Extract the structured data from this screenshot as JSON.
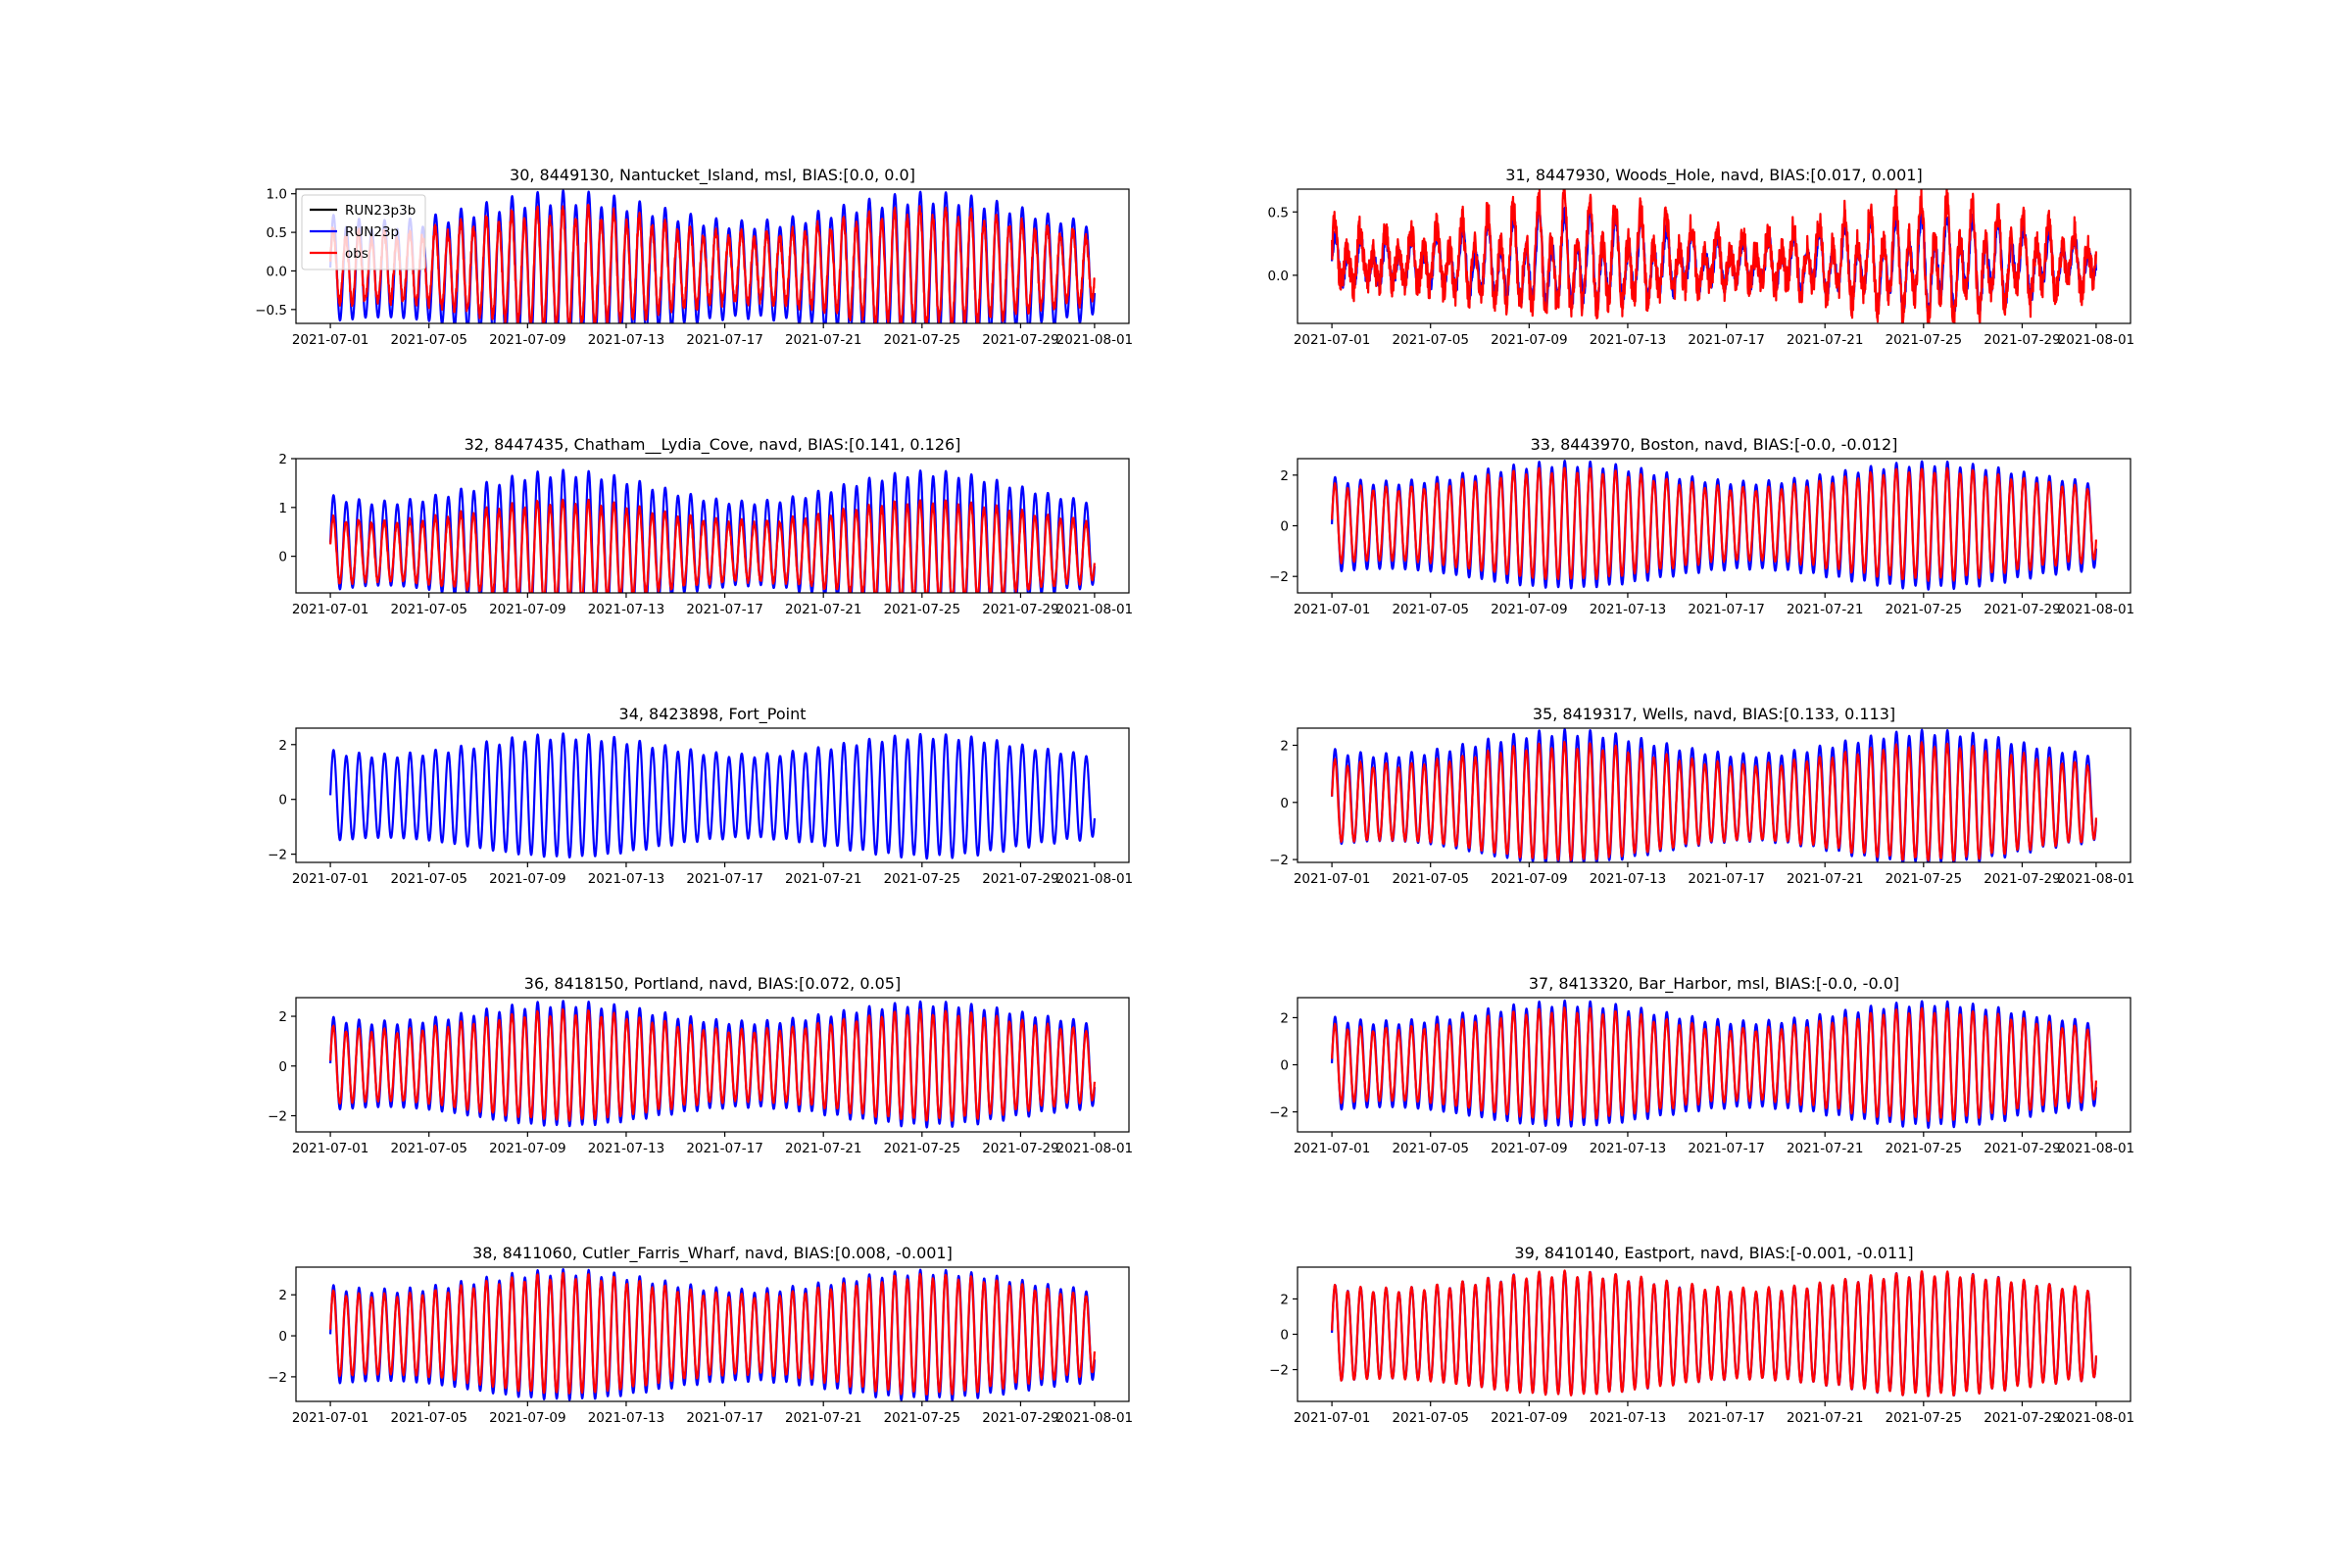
{
  "colors": {
    "run23p3b": "#000000",
    "run23p": "#0000ff",
    "obs": "#ff0000"
  },
  "legend": {
    "placement": "upper-left of first panel",
    "entries": [
      "RUN23p3b",
      "RUN23p",
      "obs"
    ]
  },
  "chart_data": [
    {
      "type": "line",
      "title": "30, 8449130, Nantucket_Island, msl, BIAS:[0.0, 0.0]",
      "x_range": [
        0,
        31
      ],
      "xtick_labels": [
        "2021-07-01",
        "2021-07-05",
        "2021-07-09",
        "2021-07-13",
        "2021-07-17",
        "2021-07-21",
        "2021-07-25",
        "2021-07-29",
        "2021-08-01"
      ],
      "xtick_days": [
        0,
        4,
        8,
        12,
        16,
        20,
        24,
        28,
        31
      ],
      "ylim": [
        -0.68,
        1.06
      ],
      "yticks": [
        -0.5,
        0.0,
        0.5,
        1.0
      ],
      "ytick_labels": [
        "−0.5",
        "0.0",
        "0.5",
        "1.0"
      ],
      "series": [
        {
          "name": "RUN23p",
          "amp": [
            0.6,
            0.95
          ],
          "sub": 0.1,
          "noise": 0.0,
          "offset": 0.0,
          "phase": 0.0,
          "visible": true
        },
        {
          "name": "obs",
          "amp": [
            0.42,
            0.72
          ],
          "sub": 0.1,
          "noise": 0.03,
          "offset": 0.03,
          "phase": 0.2,
          "visible": true
        }
      ]
    },
    {
      "type": "line",
      "title": "31, 8447930, Woods_Hole, navd, BIAS:[0.017, 0.001]",
      "x_range": [
        0,
        31
      ],
      "xtick_labels": [
        "2021-07-01",
        "2021-07-05",
        "2021-07-09",
        "2021-07-13",
        "2021-07-17",
        "2021-07-21",
        "2021-07-25",
        "2021-07-29",
        "2021-08-01"
      ],
      "xtick_days": [
        0,
        4,
        8,
        12,
        16,
        20,
        24,
        28,
        31
      ],
      "ylim": [
        -0.38,
        0.68
      ],
      "yticks": [
        0.0,
        0.5
      ],
      "ytick_labels": [
        "0.0",
        "0.5"
      ],
      "series": [
        {
          "name": "RUN23p",
          "amp": [
            0.13,
            0.28
          ],
          "sub": 0.5,
          "noise": 0.03,
          "offset": 0.08,
          "phase": 0.0,
          "visible": true
        },
        {
          "name": "obs",
          "amp": [
            0.16,
            0.34
          ],
          "sub": 0.5,
          "noise": 0.06,
          "offset": 0.1,
          "phase": 0.25,
          "visible": true
        }
      ]
    },
    {
      "type": "line",
      "title": "32, 8447435, Chatham__Lydia_Cove, navd, BIAS:[0.141, 0.126]",
      "x_range": [
        0,
        31
      ],
      "xtick_labels": [
        "2021-07-01",
        "2021-07-05",
        "2021-07-09",
        "2021-07-13",
        "2021-07-17",
        "2021-07-21",
        "2021-07-25",
        "2021-07-29",
        "2021-08-01"
      ],
      "xtick_days": [
        0,
        4,
        8,
        12,
        16,
        20,
        24,
        28,
        31
      ],
      "ylim": [
        -0.75,
        2.0
      ],
      "yticks": [
        0,
        1,
        2
      ],
      "ytick_labels": [
        "0",
        "1",
        "2"
      ],
      "series": [
        {
          "name": "RUN23p",
          "amp": [
            0.85,
            1.45
          ],
          "sub": 0.05,
          "noise": 0.0,
          "offset": 0.25,
          "phase": 0.0,
          "visible": true
        },
        {
          "name": "obs",
          "amp": [
            0.6,
            1.0
          ],
          "sub": 0.05,
          "noise": 0.02,
          "offset": 0.1,
          "phase": 0.15,
          "visible": true
        }
      ]
    },
    {
      "type": "line",
      "title": "33, 8443970, Boston, navd, BIAS:[-0.0, -0.012]",
      "x_range": [
        0,
        31
      ],
      "xtick_labels": [
        "2021-07-01",
        "2021-07-05",
        "2021-07-09",
        "2021-07-13",
        "2021-07-17",
        "2021-07-21",
        "2021-07-25",
        "2021-07-29",
        "2021-08-01"
      ],
      "xtick_days": [
        0,
        4,
        8,
        12,
        16,
        20,
        24,
        28,
        31
      ],
      "ylim": [
        -2.65,
        2.65
      ],
      "yticks": [
        -2,
        0,
        2
      ],
      "ytick_labels": [
        "−2",
        "0",
        "2"
      ],
      "series": [
        {
          "name": "RUN23p",
          "amp": [
            1.7,
            2.45
          ],
          "sub": 0.05,
          "noise": 0.0,
          "offset": 0.0,
          "phase": 0.0,
          "visible": true
        },
        {
          "name": "obs",
          "amp": [
            1.4,
            2.15
          ],
          "sub": 0.05,
          "noise": 0.02,
          "offset": 0.05,
          "phase": 0.1,
          "visible": true
        }
      ]
    },
    {
      "type": "line",
      "title": "34, 8423898, Fort_Point",
      "x_range": [
        0,
        31
      ],
      "xtick_labels": [
        "2021-07-01",
        "2021-07-05",
        "2021-07-09",
        "2021-07-13",
        "2021-07-17",
        "2021-07-21",
        "2021-07-25",
        "2021-07-29",
        "2021-08-01"
      ],
      "xtick_days": [
        0,
        4,
        8,
        12,
        16,
        20,
        24,
        28,
        31
      ],
      "ylim": [
        -2.3,
        2.6
      ],
      "yticks": [
        -2,
        0,
        2
      ],
      "ytick_labels": [
        "−2",
        "0",
        "2"
      ],
      "series": [
        {
          "name": "RUN23p",
          "amp": [
            1.5,
            2.2
          ],
          "sub": 0.05,
          "noise": 0.0,
          "offset": 0.1,
          "phase": 0.0,
          "visible": true
        }
      ]
    },
    {
      "type": "line",
      "title": "35, 8419317, Wells, navd, BIAS:[0.133, 0.113]",
      "x_range": [
        0,
        31
      ],
      "xtick_labels": [
        "2021-07-01",
        "2021-07-05",
        "2021-07-09",
        "2021-07-13",
        "2021-07-17",
        "2021-07-21",
        "2021-07-25",
        "2021-07-29",
        "2021-08-01"
      ],
      "xtick_days": [
        0,
        4,
        8,
        12,
        16,
        20,
        24,
        28,
        31
      ],
      "ylim": [
        -2.1,
        2.6
      ],
      "yticks": [
        -2,
        0,
        2
      ],
      "ytick_labels": [
        "−2",
        "0",
        "2"
      ],
      "series": [
        {
          "name": "RUN23p",
          "amp": [
            1.5,
            2.3
          ],
          "sub": 0.05,
          "noise": 0.0,
          "offset": 0.15,
          "phase": 0.0,
          "visible": true
        },
        {
          "name": "obs",
          "amp": [
            1.3,
            2.0
          ],
          "sub": 0.05,
          "noise": 0.02,
          "offset": 0.0,
          "phase": 0.1,
          "visible": true
        }
      ]
    },
    {
      "type": "line",
      "title": "36, 8418150, Portland, navd, BIAS:[0.072, 0.05]",
      "x_range": [
        0,
        31
      ],
      "xtick_labels": [
        "2021-07-01",
        "2021-07-05",
        "2021-07-09",
        "2021-07-13",
        "2021-07-17",
        "2021-07-21",
        "2021-07-25",
        "2021-07-29",
        "2021-08-01"
      ],
      "xtick_days": [
        0,
        4,
        8,
        12,
        16,
        20,
        24,
        28,
        31
      ],
      "ylim": [
        -2.65,
        2.75
      ],
      "yticks": [
        -2,
        0,
        2
      ],
      "ytick_labels": [
        "−2",
        "0",
        "2"
      ],
      "series": [
        {
          "name": "RUN23p",
          "amp": [
            1.7,
            2.45
          ],
          "sub": 0.05,
          "noise": 0.0,
          "offset": 0.05,
          "phase": 0.0,
          "visible": true
        },
        {
          "name": "obs",
          "amp": [
            1.4,
            2.15
          ],
          "sub": 0.05,
          "noise": 0.02,
          "offset": 0.0,
          "phase": 0.1,
          "visible": true
        }
      ]
    },
    {
      "type": "line",
      "title": "37, 8413320, Bar_Harbor, msl, BIAS:[-0.0, -0.0]",
      "x_range": [
        0,
        31
      ],
      "xtick_labels": [
        "2021-07-01",
        "2021-07-05",
        "2021-07-09",
        "2021-07-13",
        "2021-07-17",
        "2021-07-21",
        "2021-07-25",
        "2021-07-29",
        "2021-08-01"
      ],
      "xtick_days": [
        0,
        4,
        8,
        12,
        16,
        20,
        24,
        28,
        31
      ],
      "ylim": [
        -2.85,
        2.85
      ],
      "yticks": [
        -2,
        0,
        2
      ],
      "ytick_labels": [
        "−2",
        "0",
        "2"
      ],
      "series": [
        {
          "name": "RUN23p",
          "amp": [
            1.8,
            2.6
          ],
          "sub": 0.05,
          "noise": 0.0,
          "offset": 0.0,
          "phase": 0.0,
          "visible": true
        },
        {
          "name": "obs",
          "amp": [
            1.5,
            2.3
          ],
          "sub": 0.05,
          "noise": 0.02,
          "offset": 0.0,
          "phase": 0.1,
          "visible": true
        }
      ]
    },
    {
      "type": "line",
      "title": "38, 8411060, Cutler_Farris_Wharf, navd, BIAS:[0.008, -0.001]",
      "x_range": [
        0,
        31
      ],
      "xtick_labels": [
        "2021-07-01",
        "2021-07-05",
        "2021-07-09",
        "2021-07-13",
        "2021-07-17",
        "2021-07-21",
        "2021-07-25",
        "2021-07-29",
        "2021-08-01"
      ],
      "xtick_days": [
        0,
        4,
        8,
        12,
        16,
        20,
        24,
        28,
        31
      ],
      "ylim": [
        -3.2,
        3.35
      ],
      "yticks": [
        -2,
        0,
        2
      ],
      "ytick_labels": [
        "−2",
        "0",
        "2"
      ],
      "series": [
        {
          "name": "RUN23p",
          "amp": [
            2.2,
            3.1
          ],
          "sub": 0.05,
          "noise": 0.0,
          "offset": 0.0,
          "phase": 0.0,
          "visible": true
        },
        {
          "name": "obs",
          "amp": [
            1.9,
            2.85
          ],
          "sub": 0.05,
          "noise": 0.02,
          "offset": 0.05,
          "phase": 0.1,
          "visible": true
        }
      ]
    },
    {
      "type": "line",
      "title": "39, 8410140, Eastport, navd, BIAS:[-0.001, -0.011]",
      "x_range": [
        0,
        31
      ],
      "xtick_labels": [
        "2021-07-01",
        "2021-07-05",
        "2021-07-09",
        "2021-07-13",
        "2021-07-17",
        "2021-07-21",
        "2021-07-25",
        "2021-07-29",
        "2021-08-01"
      ],
      "xtick_days": [
        0,
        4,
        8,
        12,
        16,
        20,
        24,
        28,
        31
      ],
      "ylim": [
        -3.8,
        3.8
      ],
      "yticks": [
        -2,
        0,
        2
      ],
      "ytick_labels": [
        "−2",
        "0",
        "2"
      ],
      "series": [
        {
          "name": "RUN23p",
          "amp": [
            2.5,
            3.4
          ],
          "sub": 0.05,
          "noise": 0.0,
          "offset": 0.0,
          "phase": 0.0,
          "visible": true
        },
        {
          "name": "obs",
          "amp": [
            2.5,
            3.4
          ],
          "sub": 0.05,
          "noise": 0.02,
          "offset": 0.0,
          "phase": 0.05,
          "visible": true
        }
      ]
    }
  ]
}
